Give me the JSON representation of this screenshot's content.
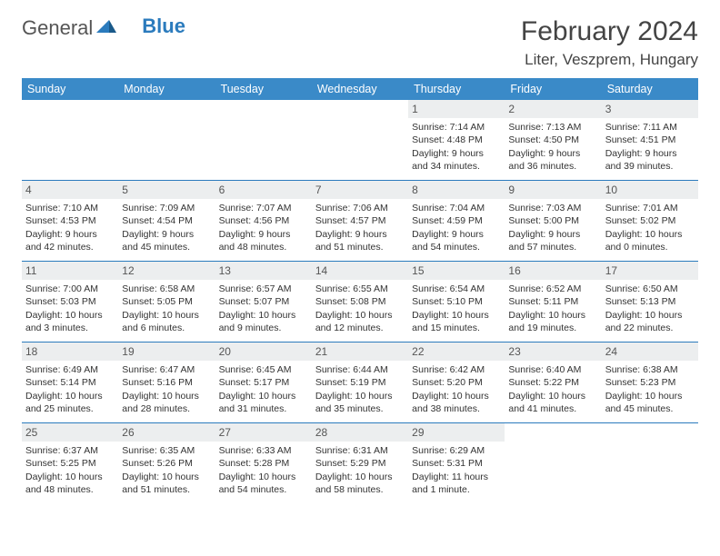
{
  "logo": {
    "text1": "General",
    "text2": "Blue"
  },
  "title": "February 2024",
  "location": "Liter, Veszprem, Hungary",
  "header_bg": "#3a8ac8",
  "header_text_color": "#ffffff",
  "date_bg": "#eceeef",
  "border_color": "#2b7bbd",
  "day_names": [
    "Sunday",
    "Monday",
    "Tuesday",
    "Wednesday",
    "Thursday",
    "Friday",
    "Saturday"
  ],
  "weeks": [
    [
      {
        "empty": true
      },
      {
        "empty": true
      },
      {
        "empty": true
      },
      {
        "empty": true
      },
      {
        "date": "1",
        "sunrise": "Sunrise: 7:14 AM",
        "sunset": "Sunset: 4:48 PM",
        "daylight1": "Daylight: 9 hours",
        "daylight2": "and 34 minutes."
      },
      {
        "date": "2",
        "sunrise": "Sunrise: 7:13 AM",
        "sunset": "Sunset: 4:50 PM",
        "daylight1": "Daylight: 9 hours",
        "daylight2": "and 36 minutes."
      },
      {
        "date": "3",
        "sunrise": "Sunrise: 7:11 AM",
        "sunset": "Sunset: 4:51 PM",
        "daylight1": "Daylight: 9 hours",
        "daylight2": "and 39 minutes."
      }
    ],
    [
      {
        "date": "4",
        "sunrise": "Sunrise: 7:10 AM",
        "sunset": "Sunset: 4:53 PM",
        "daylight1": "Daylight: 9 hours",
        "daylight2": "and 42 minutes."
      },
      {
        "date": "5",
        "sunrise": "Sunrise: 7:09 AM",
        "sunset": "Sunset: 4:54 PM",
        "daylight1": "Daylight: 9 hours",
        "daylight2": "and 45 minutes."
      },
      {
        "date": "6",
        "sunrise": "Sunrise: 7:07 AM",
        "sunset": "Sunset: 4:56 PM",
        "daylight1": "Daylight: 9 hours",
        "daylight2": "and 48 minutes."
      },
      {
        "date": "7",
        "sunrise": "Sunrise: 7:06 AM",
        "sunset": "Sunset: 4:57 PM",
        "daylight1": "Daylight: 9 hours",
        "daylight2": "and 51 minutes."
      },
      {
        "date": "8",
        "sunrise": "Sunrise: 7:04 AM",
        "sunset": "Sunset: 4:59 PM",
        "daylight1": "Daylight: 9 hours",
        "daylight2": "and 54 minutes."
      },
      {
        "date": "9",
        "sunrise": "Sunrise: 7:03 AM",
        "sunset": "Sunset: 5:00 PM",
        "daylight1": "Daylight: 9 hours",
        "daylight2": "and 57 minutes."
      },
      {
        "date": "10",
        "sunrise": "Sunrise: 7:01 AM",
        "sunset": "Sunset: 5:02 PM",
        "daylight1": "Daylight: 10 hours",
        "daylight2": "and 0 minutes."
      }
    ],
    [
      {
        "date": "11",
        "sunrise": "Sunrise: 7:00 AM",
        "sunset": "Sunset: 5:03 PM",
        "daylight1": "Daylight: 10 hours",
        "daylight2": "and 3 minutes."
      },
      {
        "date": "12",
        "sunrise": "Sunrise: 6:58 AM",
        "sunset": "Sunset: 5:05 PM",
        "daylight1": "Daylight: 10 hours",
        "daylight2": "and 6 minutes."
      },
      {
        "date": "13",
        "sunrise": "Sunrise: 6:57 AM",
        "sunset": "Sunset: 5:07 PM",
        "daylight1": "Daylight: 10 hours",
        "daylight2": "and 9 minutes."
      },
      {
        "date": "14",
        "sunrise": "Sunrise: 6:55 AM",
        "sunset": "Sunset: 5:08 PM",
        "daylight1": "Daylight: 10 hours",
        "daylight2": "and 12 minutes."
      },
      {
        "date": "15",
        "sunrise": "Sunrise: 6:54 AM",
        "sunset": "Sunset: 5:10 PM",
        "daylight1": "Daylight: 10 hours",
        "daylight2": "and 15 minutes."
      },
      {
        "date": "16",
        "sunrise": "Sunrise: 6:52 AM",
        "sunset": "Sunset: 5:11 PM",
        "daylight1": "Daylight: 10 hours",
        "daylight2": "and 19 minutes."
      },
      {
        "date": "17",
        "sunrise": "Sunrise: 6:50 AM",
        "sunset": "Sunset: 5:13 PM",
        "daylight1": "Daylight: 10 hours",
        "daylight2": "and 22 minutes."
      }
    ],
    [
      {
        "date": "18",
        "sunrise": "Sunrise: 6:49 AM",
        "sunset": "Sunset: 5:14 PM",
        "daylight1": "Daylight: 10 hours",
        "daylight2": "and 25 minutes."
      },
      {
        "date": "19",
        "sunrise": "Sunrise: 6:47 AM",
        "sunset": "Sunset: 5:16 PM",
        "daylight1": "Daylight: 10 hours",
        "daylight2": "and 28 minutes."
      },
      {
        "date": "20",
        "sunrise": "Sunrise: 6:45 AM",
        "sunset": "Sunset: 5:17 PM",
        "daylight1": "Daylight: 10 hours",
        "daylight2": "and 31 minutes."
      },
      {
        "date": "21",
        "sunrise": "Sunrise: 6:44 AM",
        "sunset": "Sunset: 5:19 PM",
        "daylight1": "Daylight: 10 hours",
        "daylight2": "and 35 minutes."
      },
      {
        "date": "22",
        "sunrise": "Sunrise: 6:42 AM",
        "sunset": "Sunset: 5:20 PM",
        "daylight1": "Daylight: 10 hours",
        "daylight2": "and 38 minutes."
      },
      {
        "date": "23",
        "sunrise": "Sunrise: 6:40 AM",
        "sunset": "Sunset: 5:22 PM",
        "daylight1": "Daylight: 10 hours",
        "daylight2": "and 41 minutes."
      },
      {
        "date": "24",
        "sunrise": "Sunrise: 6:38 AM",
        "sunset": "Sunset: 5:23 PM",
        "daylight1": "Daylight: 10 hours",
        "daylight2": "and 45 minutes."
      }
    ],
    [
      {
        "date": "25",
        "sunrise": "Sunrise: 6:37 AM",
        "sunset": "Sunset: 5:25 PM",
        "daylight1": "Daylight: 10 hours",
        "daylight2": "and 48 minutes."
      },
      {
        "date": "26",
        "sunrise": "Sunrise: 6:35 AM",
        "sunset": "Sunset: 5:26 PM",
        "daylight1": "Daylight: 10 hours",
        "daylight2": "and 51 minutes."
      },
      {
        "date": "27",
        "sunrise": "Sunrise: 6:33 AM",
        "sunset": "Sunset: 5:28 PM",
        "daylight1": "Daylight: 10 hours",
        "daylight2": "and 54 minutes."
      },
      {
        "date": "28",
        "sunrise": "Sunrise: 6:31 AM",
        "sunset": "Sunset: 5:29 PM",
        "daylight1": "Daylight: 10 hours",
        "daylight2": "and 58 minutes."
      },
      {
        "date": "29",
        "sunrise": "Sunrise: 6:29 AM",
        "sunset": "Sunset: 5:31 PM",
        "daylight1": "Daylight: 11 hours",
        "daylight2": "and 1 minute."
      },
      {
        "empty": true
      },
      {
        "empty": true
      }
    ]
  ]
}
